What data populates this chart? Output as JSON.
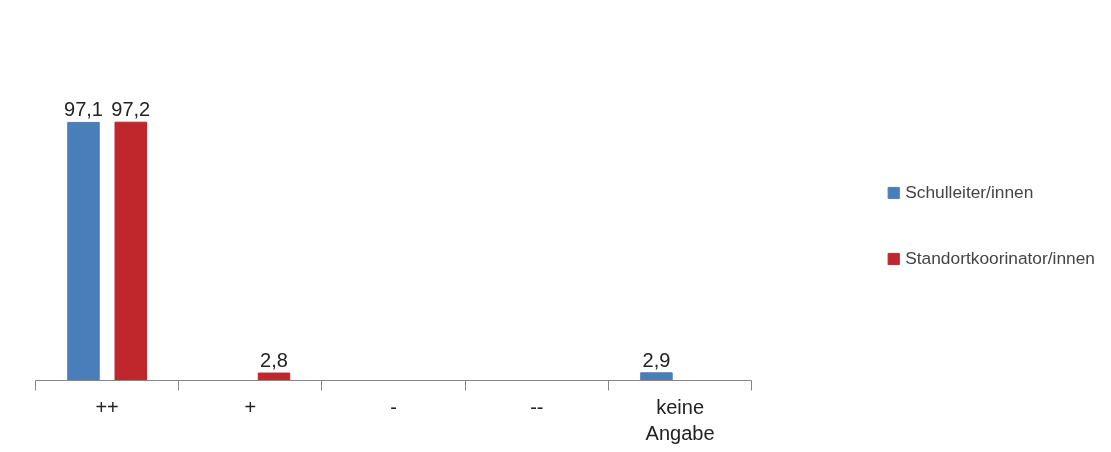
{
  "chart_data": {
    "type": "bar",
    "categories": [
      "++",
      "+",
      "-",
      "--",
      "keine Angabe"
    ],
    "series": [
      {
        "name": "Schulleiter/innen",
        "color": "#4a7ebb",
        "values": [
          97.1,
          0,
          0,
          0,
          2.9
        ],
        "value_labels": [
          "97,1",
          null,
          null,
          null,
          "2,9"
        ]
      },
      {
        "name": "Standortkoorinator/innen",
        "color": "#c0272d",
        "values": [
          97.2,
          2.8,
          0,
          0,
          0
        ],
        "value_labels": [
          "97,2",
          "2,8",
          null,
          null,
          null
        ]
      }
    ],
    "legend": "right",
    "grid": false
  }
}
